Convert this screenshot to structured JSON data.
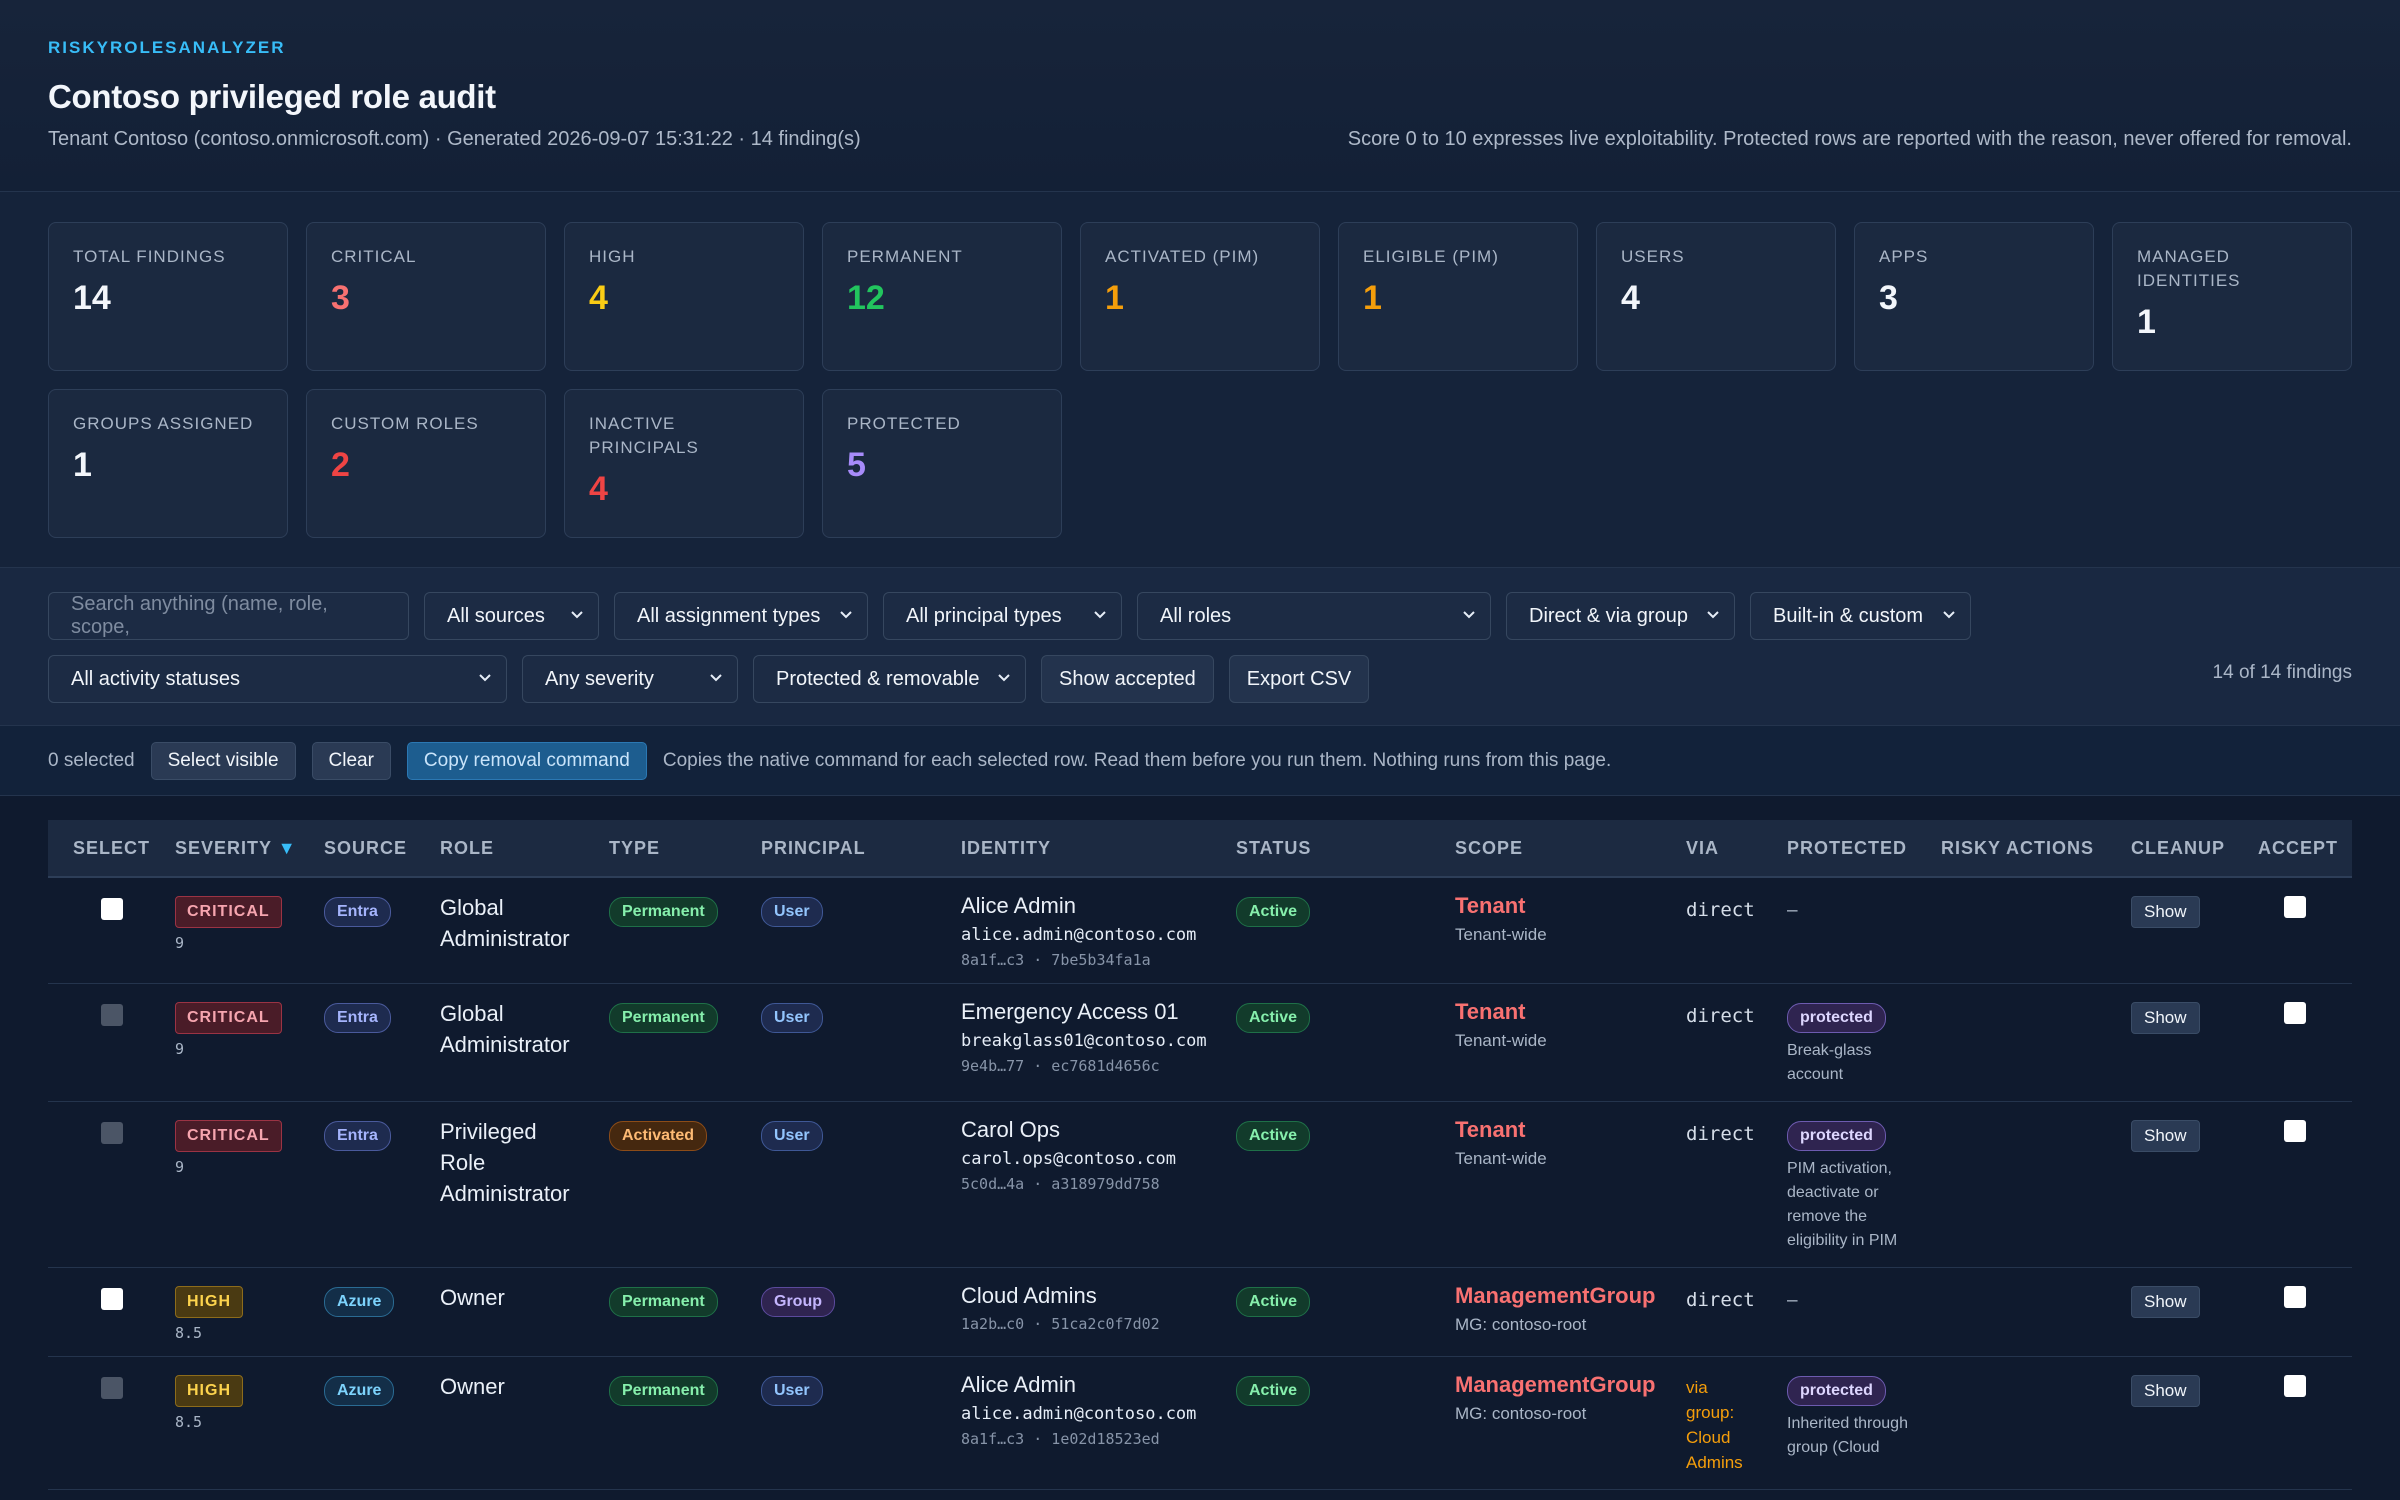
{
  "header": {
    "brand": "RISKYROLESANALYZER",
    "title": "Contoso privileged role audit",
    "subtitle": "Tenant Contoso (contoso.onmicrosoft.com) · Generated 2026-09-07 15:31:22 · 14 finding(s)",
    "note": "Score 0 to 10 expresses live exploitability. Protected rows are reported with the reason, never offered for removal."
  },
  "metrics": [
    {
      "label": "TOTAL FINDINGS",
      "value": "14",
      "color": "#f3f6fb"
    },
    {
      "label": "CRITICAL",
      "value": "3",
      "color": "#f87171"
    },
    {
      "label": "HIGH",
      "value": "4",
      "color": "#facc15"
    },
    {
      "label": "PERMANENT",
      "value": "12",
      "color": "#22c55e"
    },
    {
      "label": "ACTIVATED (PIM)",
      "value": "1",
      "color": "#f59e0b"
    },
    {
      "label": "ELIGIBLE (PIM)",
      "value": "1",
      "color": "#f59e0b"
    },
    {
      "label": "USERS",
      "value": "4",
      "color": "#f3f6fb"
    },
    {
      "label": "APPS",
      "value": "3",
      "color": "#f3f6fb"
    },
    {
      "label": "MANAGED IDENTITIES",
      "value": "1",
      "color": "#f3f6fb"
    },
    {
      "label": "GROUPS ASSIGNED",
      "value": "1",
      "color": "#f3f6fb"
    },
    {
      "label": "CUSTOM ROLES",
      "value": "2",
      "color": "#ef4444"
    },
    {
      "label": "INACTIVE PRINCIPALS",
      "value": "4",
      "color": "#ef4444"
    },
    {
      "label": "PROTECTED",
      "value": "5",
      "color": "#a78bfa"
    }
  ],
  "filters": {
    "search_placeholder": "Search anything (name, role, scope,",
    "sources": "All sources",
    "assignment_types": "All assignment types",
    "principal_types": "All principal types",
    "roles": "All roles",
    "direct_group": "Direct & via group",
    "builtin_custom": "Built-in & custom",
    "activity": "All activity statuses",
    "severity": "Any severity",
    "protected": "Protected & removable",
    "show_accepted": "Show accepted",
    "export_csv": "Export CSV",
    "count": "14 of 14 findings"
  },
  "selection": {
    "selected": "0 selected",
    "select_visible": "Select visible",
    "clear": "Clear",
    "copy": "Copy removal command",
    "hint": "Copies the native command for each selected row. Read them before you run them. Nothing runs from this page."
  },
  "table": {
    "headers": {
      "select": "SELECT",
      "severity": "SEVERITY",
      "sort_icon": "▼",
      "source": "SOURCE",
      "role": "ROLE",
      "type": "TYPE",
      "principal": "PRINCIPAL",
      "identity": "IDENTITY",
      "status": "STATUS",
      "scope": "SCOPE",
      "via": "VIA",
      "protected": "PROTECTED",
      "risky": "RISKY ACTIONS",
      "cleanup": "CLEANUP",
      "accept": "ACCEPT"
    },
    "show_label": "Show",
    "rows": [
      {
        "severity": "CRITICAL",
        "score": "9",
        "source": "Entra",
        "role": "Global Administrator",
        "type": "Permanent",
        "principal": "User",
        "name": "Alice Admin",
        "email": "alice.admin@contoso.com",
        "ids": "8a1f…c3 · 7be5b34fa1a",
        "status": "Active",
        "scope": "Tenant",
        "scope_sub": "Tenant-wide",
        "via": "direct",
        "protected": "–",
        "reason": ""
      },
      {
        "severity": "CRITICAL",
        "score": "9",
        "source": "Entra",
        "role": "Global Administrator",
        "type": "Permanent",
        "principal": "User",
        "name": "Emergency Access 01",
        "email": "breakglass01@contoso.com",
        "ids": "9e4b…77 · ec7681d4656c",
        "status": "Active",
        "scope": "Tenant",
        "scope_sub": "Tenant-wide",
        "via": "direct",
        "protected": "protected",
        "reason": "Break-glass account"
      },
      {
        "severity": "CRITICAL",
        "score": "9",
        "source": "Entra",
        "role": "Privileged Role Administrator",
        "type": "Activated",
        "principal": "User",
        "name": "Carol Ops",
        "email": "carol.ops@contoso.com",
        "ids": "5c0d…4a · a318979dd758",
        "status": "Active",
        "scope": "Tenant",
        "scope_sub": "Tenant-wide",
        "via": "direct",
        "protected": "protected",
        "reason": "PIM activation, deactivate or remove the eligibility in PIM"
      },
      {
        "severity": "HIGH",
        "score": "8.5",
        "source": "Azure",
        "role": "Owner",
        "type": "Permanent",
        "principal": "Group",
        "name": "Cloud Admins",
        "email": "",
        "ids": "1a2b…c0 · 51ca2c0f7d02",
        "status": "Active",
        "scope": "ManagementGroup",
        "scope_sub": "MG: contoso-root",
        "via": "direct",
        "protected": "–",
        "reason": ""
      },
      {
        "severity": "HIGH",
        "score": "8.5",
        "source": "Azure",
        "role": "Owner",
        "type": "Permanent",
        "principal": "User",
        "name": "Alice Admin",
        "email": "alice.admin@contoso.com",
        "ids": "8a1f…c3 · 1e02d18523ed",
        "status": "Active",
        "scope": "ManagementGroup",
        "scope_sub": "MG: contoso-root",
        "via": "via group: Cloud Admins",
        "protected": "protected",
        "reason": "Inherited through group (Cloud"
      }
    ]
  }
}
